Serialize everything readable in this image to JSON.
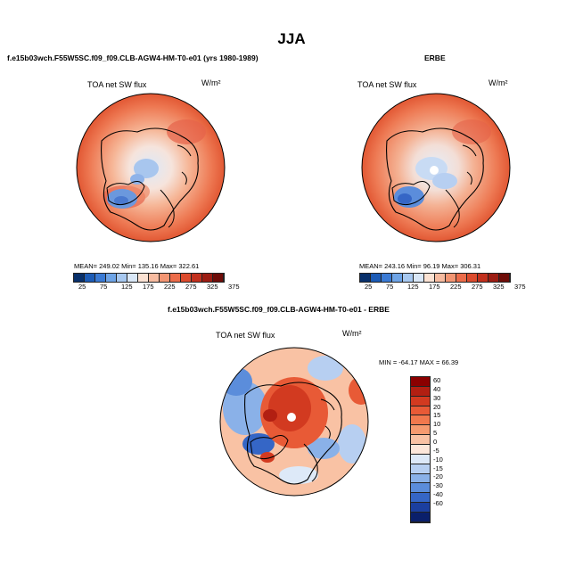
{
  "page_title": "JJA",
  "panels": [
    {
      "subtitle": "f.e15b03wch.F55W5SC.f09_f09.CLB-AGW4-HM-T0-e01 (yrs 1980-1989)",
      "field_label": "TOA net SW flux",
      "units": "W/m²",
      "stats": "MEAN= 249.02   Min= 135.16   Max= 322.61"
    },
    {
      "subtitle": "ERBE",
      "field_label": "TOA net SW flux",
      "units": "W/m²",
      "stats": "MEAN= 243.16   Min=  96.19   Max= 306.31"
    },
    {
      "subtitle": "f.e15b03wch.F55W5SC.f09_f09.CLB-AGW4-HM-T0-e01 - ERBE",
      "field_label": "TOA net SW flux",
      "units": "W/m²",
      "stats": "MIN = -64.17 MAX =  66.39"
    }
  ],
  "colorbar_top": {
    "ticks": [
      "25",
      "75",
      "125",
      "175",
      "225",
      "275",
      "325",
      "375"
    ],
    "colors": [
      "#08306b",
      "#1c5bb5",
      "#3a7ad4",
      "#6ea4e6",
      "#a7c8f0",
      "#d9e7f7",
      "#fbe2d3",
      "#f7bba0",
      "#f39572",
      "#ec6c4a",
      "#dc4b2d",
      "#c2301d",
      "#9c1c12",
      "#6e0c08"
    ]
  },
  "colorbar_diff": {
    "labels": [
      "60",
      "40",
      "30",
      "20",
      "15",
      "10",
      "5",
      "0",
      "-5",
      "-10",
      "-15",
      "-20",
      "-30",
      "-40",
      "-60"
    ],
    "colors": [
      "#8b0000",
      "#b21f12",
      "#d23a20",
      "#e85a36",
      "#f1784d",
      "#f69a6f",
      "#f9c2a4",
      "#fde7da",
      "#dde9f8",
      "#b7cff1",
      "#8ab1e8",
      "#5b8ddb",
      "#3566c6",
      "#1b3f9f",
      "#0a1f6b"
    ]
  }
}
